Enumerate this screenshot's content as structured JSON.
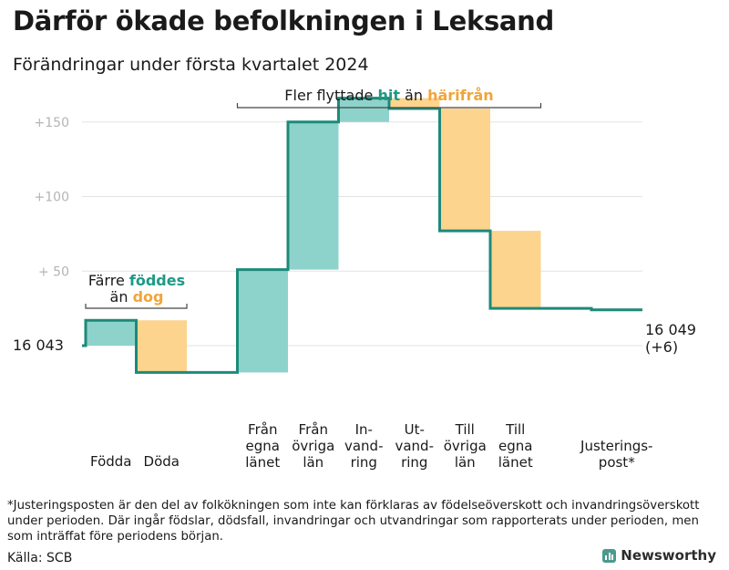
{
  "title": "Därför ökade befolkningen i Leksand",
  "subtitle": "Förändringar under första kvartalet 2024",
  "chart_data": {
    "type": "waterfall",
    "base_value": 16043,
    "start_label": "16  043",
    "end_label_line1": "16 049",
    "end_label_line2": "(+6)",
    "ylim": [
      -25,
      160
    ],
    "y_ticks": [
      {
        "value": 150,
        "label": "+150"
      },
      {
        "value": 100,
        "label": "+100"
      },
      {
        "value": 50,
        "label": "+  50"
      }
    ],
    "series": [
      {
        "name": "hit",
        "color": "#8ed3cb"
      },
      {
        "name": "härifrån",
        "color": "#fcd48e"
      }
    ],
    "steps": [
      {
        "label": [
          "Födda"
        ],
        "value": 17,
        "group": 0
      },
      {
        "label": [
          "Döda"
        ],
        "value": -35,
        "group": 0
      },
      {
        "label": [
          "Från",
          "egna",
          "länet"
        ],
        "value": 69,
        "group": 1
      },
      {
        "label": [
          "Från",
          "övriga",
          "län"
        ],
        "value": 99,
        "group": 1
      },
      {
        "label": [
          "In-",
          "vand-",
          "ring"
        ],
        "value": 16,
        "group": 1
      },
      {
        "label": [
          "Ut-",
          "vand-",
          "ring"
        ],
        "value": -7,
        "group": 1
      },
      {
        "label": [
          "Till",
          "övriga",
          "län"
        ],
        "value": -82,
        "group": 1
      },
      {
        "label": [
          "Till",
          "egna",
          "länet"
        ],
        "value": -52,
        "group": 1
      },
      {
        "label": [
          "Justerings-",
          "post*"
        ],
        "value": -1,
        "group": 2
      }
    ],
    "annotations": {
      "births": {
        "line1": "Färre",
        "hit_word": "föddes",
        "line2_prefix": "än",
        "away_word": "dog"
      },
      "migration": {
        "prefix": "Fler flyttade",
        "hit_word": "hit",
        "middle": "än",
        "away_word": "härifrån"
      }
    },
    "colors": {
      "line": "#1d8a7a",
      "grid": "#e3e3e3",
      "tick": "#b5b5b5",
      "adjust": "#cccccc",
      "hit_text": "#1d9a86",
      "away_text": "#f0a53a"
    }
  },
  "footnote": "*Justeringsposten är den del av folkökningen som inte kan förklaras av födelseöverskott och invandringsöverskott under perioden. Där ingår födslar, dödsfall, invandringar och utvandringar som rapporterats under perioden, men som inträffat före periodens början.",
  "source": "Källa: SCB",
  "brand": "Newsworthy"
}
